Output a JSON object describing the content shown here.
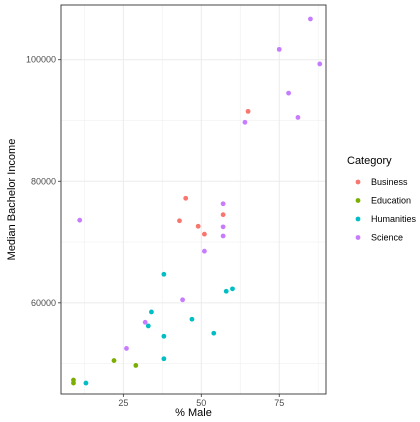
{
  "chart_data": {
    "type": "scatter",
    "xlabel": "% Male",
    "ylabel": "Median Bachelor Income",
    "xlim": [
      5,
      90
    ],
    "ylim": [
      45000,
      109000
    ],
    "x_ticks": [
      25,
      50,
      75
    ],
    "x_tick_labels": [
      "25",
      "50",
      "75"
    ],
    "y_ticks": [
      60000,
      80000,
      100000
    ],
    "y_tick_labels": [
      "60000",
      "80000",
      "100000"
    ],
    "grid": true,
    "legend": {
      "title": "Category",
      "position": "right"
    },
    "series": [
      {
        "name": "Business",
        "color": "#F8766D",
        "points": [
          {
            "x": 65,
            "y": 91500
          },
          {
            "x": 45,
            "y": 77200
          },
          {
            "x": 43,
            "y": 73500
          },
          {
            "x": 57,
            "y": 74500
          },
          {
            "x": 49,
            "y": 72600
          },
          {
            "x": 51,
            "y": 71300
          }
        ]
      },
      {
        "name": "Education",
        "color": "#7CAE00",
        "points": [
          {
            "x": 9,
            "y": 47300
          },
          {
            "x": 9,
            "y": 46800
          },
          {
            "x": 22,
            "y": 50500
          },
          {
            "x": 29,
            "y": 49700
          }
        ]
      },
      {
        "name": "Humanities",
        "color": "#00BFC4",
        "points": [
          {
            "x": 13,
            "y": 46800
          },
          {
            "x": 38,
            "y": 64700
          },
          {
            "x": 34,
            "y": 58500
          },
          {
            "x": 33,
            "y": 56200
          },
          {
            "x": 38,
            "y": 54500
          },
          {
            "x": 38,
            "y": 50800
          },
          {
            "x": 47,
            "y": 57300
          },
          {
            "x": 54,
            "y": 55000
          },
          {
            "x": 58,
            "y": 61900
          },
          {
            "x": 60,
            "y": 62300
          }
        ]
      },
      {
        "name": "Science",
        "color": "#C77CFF",
        "points": [
          {
            "x": 11,
            "y": 73600
          },
          {
            "x": 26,
            "y": 52500
          },
          {
            "x": 32,
            "y": 56800
          },
          {
            "x": 44,
            "y": 60500
          },
          {
            "x": 51,
            "y": 68500
          },
          {
            "x": 57,
            "y": 76300
          },
          {
            "x": 57,
            "y": 72500
          },
          {
            "x": 57,
            "y": 71000
          },
          {
            "x": 64,
            "y": 89700
          },
          {
            "x": 75,
            "y": 101700
          },
          {
            "x": 78,
            "y": 94500
          },
          {
            "x": 81,
            "y": 90500
          },
          {
            "x": 85,
            "y": 106700
          },
          {
            "x": 88,
            "y": 99300
          }
        ]
      }
    ]
  }
}
